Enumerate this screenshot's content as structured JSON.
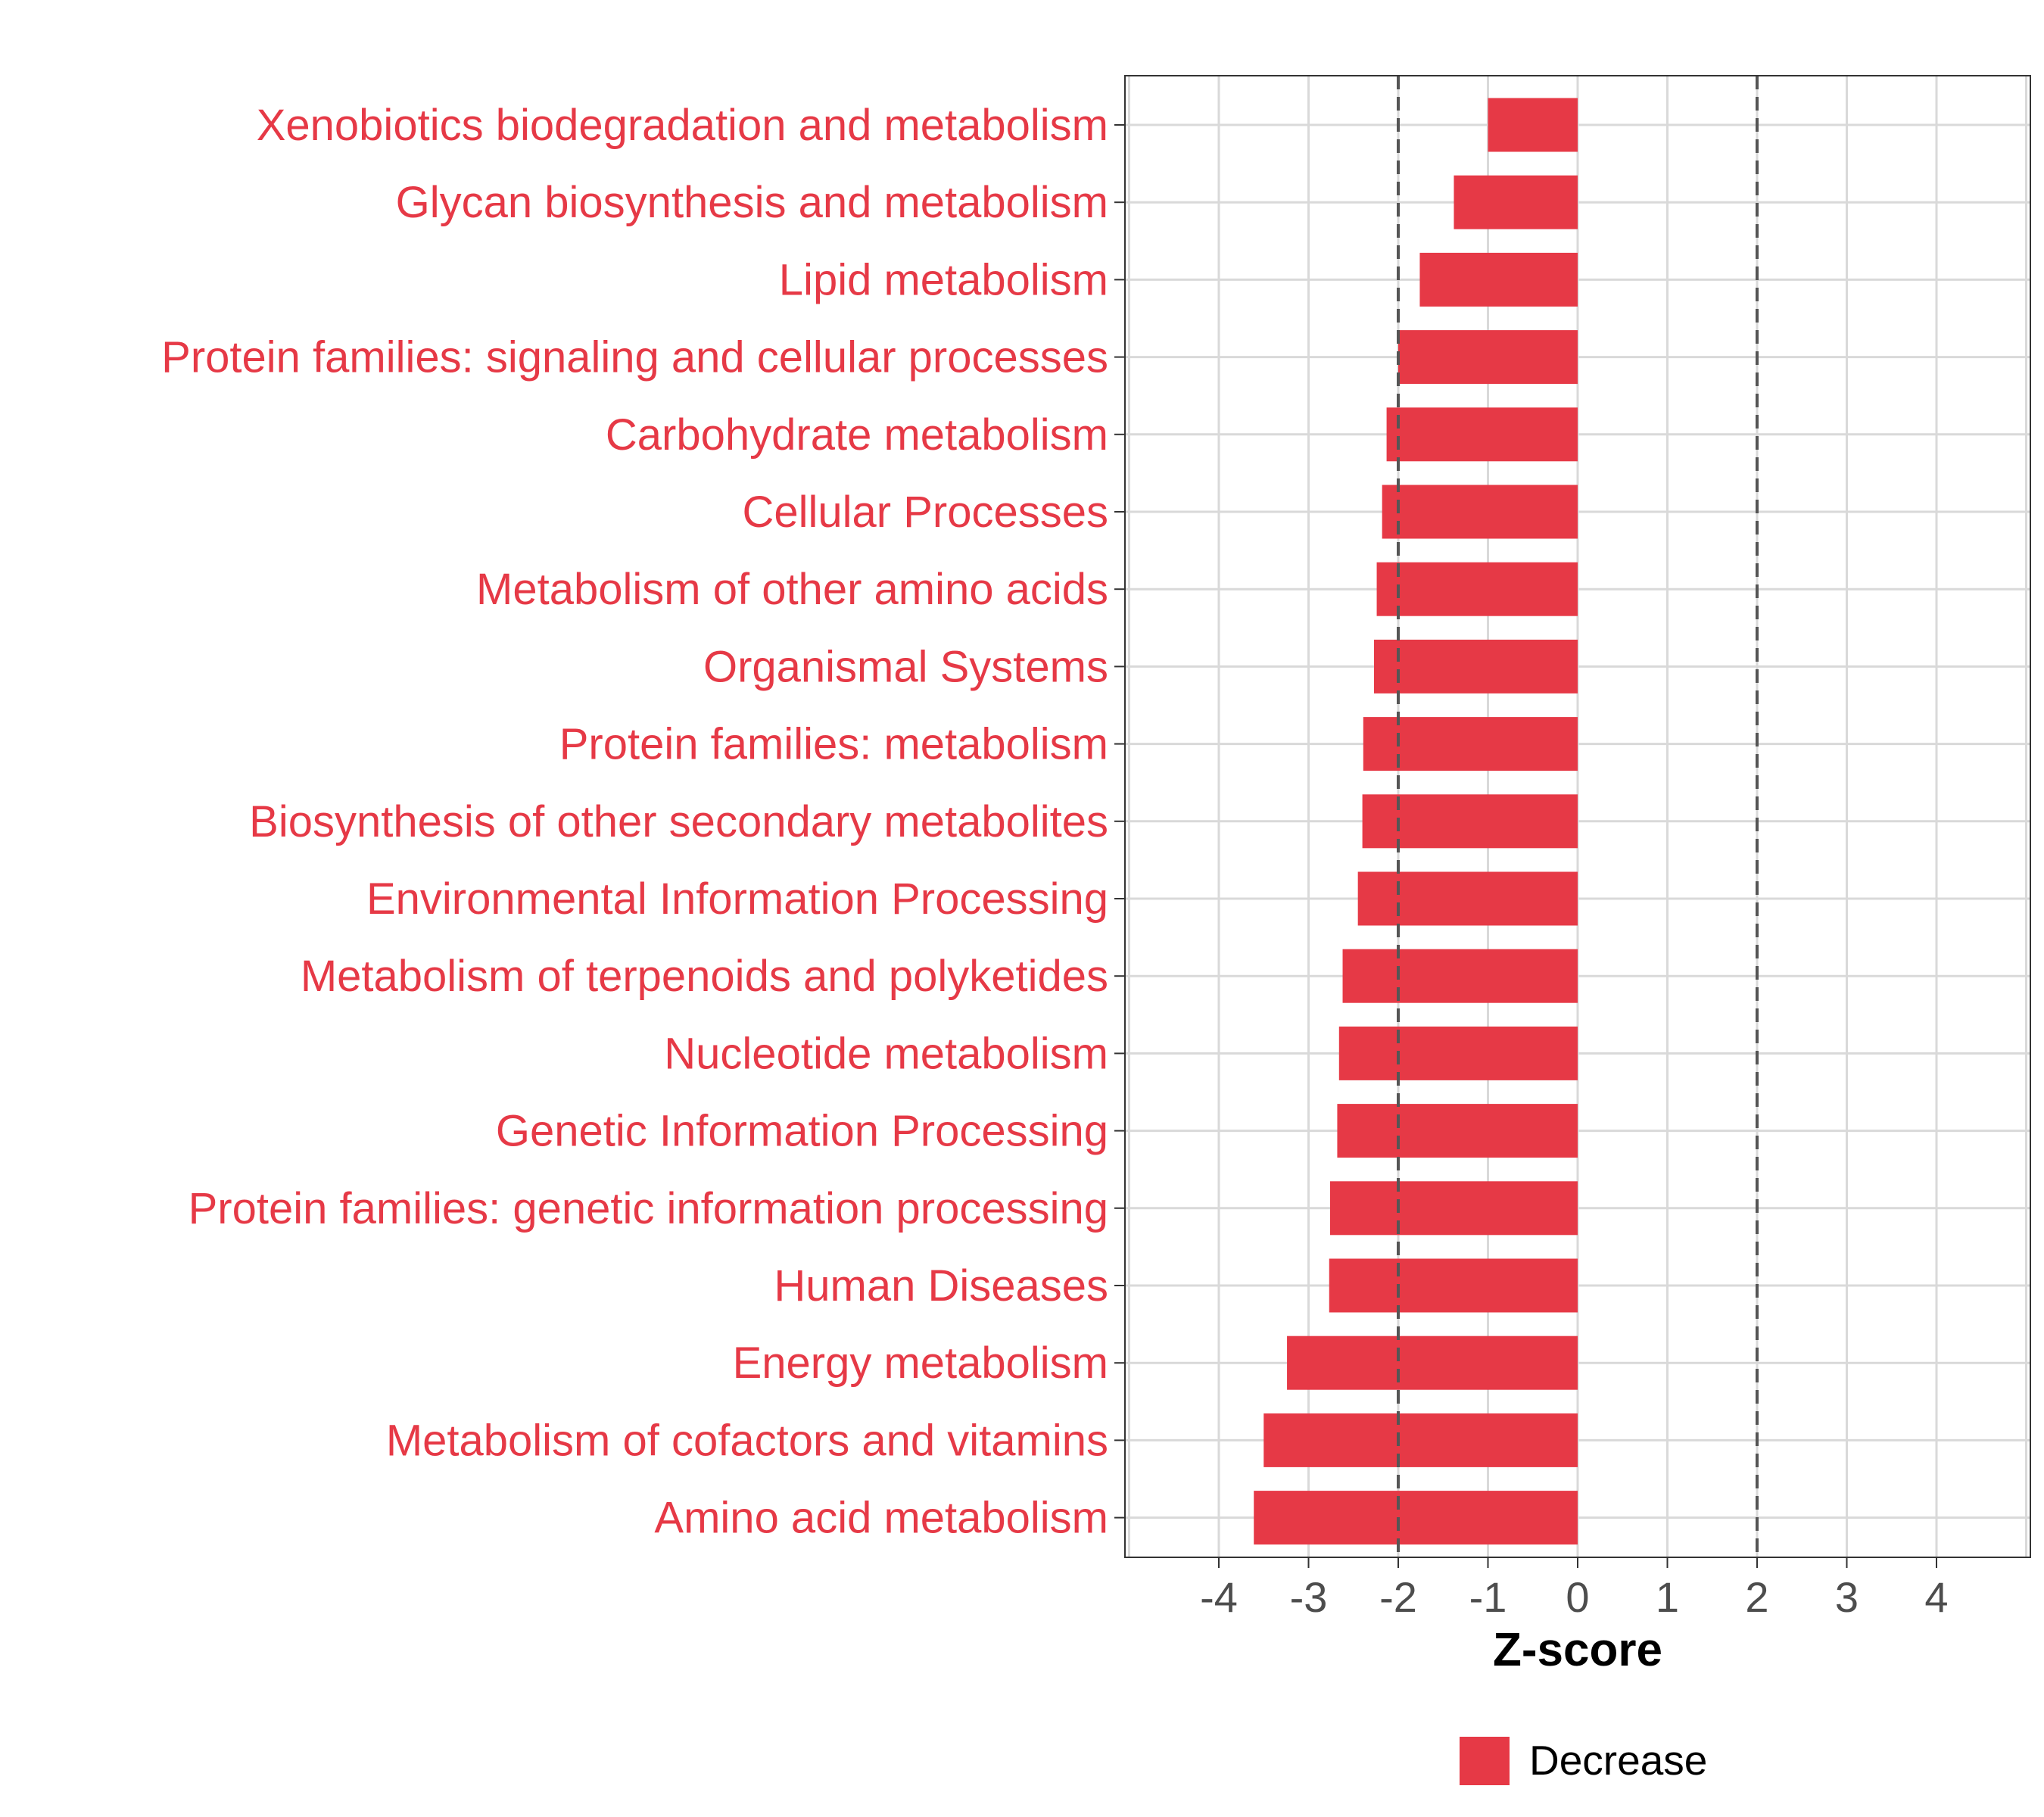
{
  "chart_data": {
    "type": "bar",
    "orientation": "horizontal",
    "title": "",
    "xlabel": "Z-score",
    "ylabel": "",
    "xlim": [
      -5,
      5
    ],
    "xticks": [
      -4,
      -3,
      -2,
      -1,
      0,
      1,
      2,
      3,
      4
    ],
    "xtick_labels": [
      "-4",
      "-3",
      "-2",
      "-1",
      "0",
      "1",
      "2",
      "3",
      "4"
    ],
    "grid": true,
    "reference_lines": [
      -2,
      2
    ],
    "legend_position": "bottom",
    "colors": {
      "decrease": "#e63946",
      "label": "#e63946"
    },
    "categories": [
      "Xenobiotics biodegradation and metabolism",
      "Glycan biosynthesis and metabolism",
      "Lipid metabolism",
      "Protein families: signaling and cellular processes",
      "Carbohydrate metabolism",
      "Cellular Processes",
      "Metabolism of other amino acids",
      "Organismal Systems",
      "Protein families: metabolism",
      "Biosynthesis of other secondary metabolites",
      "Environmental Information Processing",
      "Metabolism of terpenoids and polyketides",
      "Nucleotide metabolism",
      "Genetic Information Processing",
      "Protein families: genetic information processing",
      "Human Diseases",
      "Energy metabolism",
      "Metabolism of cofactors and vitamins",
      "Amino acid metabolism"
    ],
    "series": [
      {
        "name": "Decrease",
        "values": [
          -1.0,
          -1.38,
          -1.76,
          -2.0,
          -2.13,
          -2.18,
          -2.24,
          -2.27,
          -2.39,
          -2.4,
          -2.45,
          -2.62,
          -2.66,
          -2.68,
          -2.76,
          -2.77,
          -3.24,
          -3.5,
          -3.61
        ]
      }
    ]
  }
}
